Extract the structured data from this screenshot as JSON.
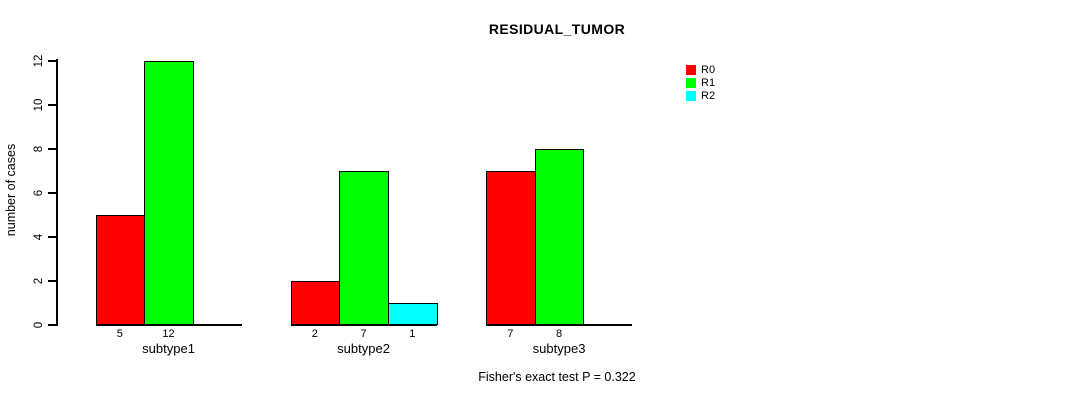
{
  "chart_data": {
    "type": "bar",
    "title": "RESIDUAL_TUMOR",
    "ylabel": "number of cases",
    "xlabel": "",
    "ylim": [
      0,
      12
    ],
    "yticks": [
      0,
      2,
      4,
      6,
      8,
      10,
      12
    ],
    "grid": false,
    "legend_position": "right",
    "categories": [
      "subtype1",
      "subtype2",
      "subtype3"
    ],
    "series": [
      {
        "name": "R0",
        "color": "#ff0000",
        "values": [
          5,
          2,
          7
        ]
      },
      {
        "name": "R1",
        "color": "#00ff00",
        "values": [
          12,
          7,
          8
        ]
      },
      {
        "name": "R2",
        "color": "#00ffff",
        "values": [
          0,
          1,
          0
        ]
      }
    ],
    "annotation": "Fisher's exact test P = 0.322",
    "axis_color": "#000000",
    "background_color": "#ffffff"
  }
}
